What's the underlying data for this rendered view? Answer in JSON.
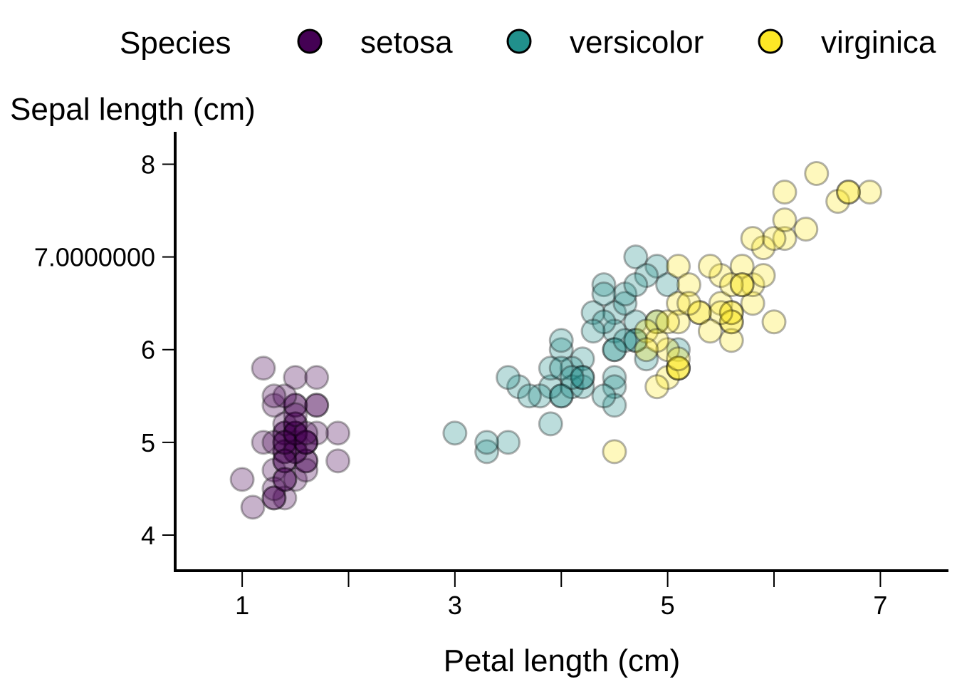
{
  "chart_data": {
    "type": "scatter",
    "xlabel": "Petal length (cm)",
    "ylabel": "Sepal length (cm)",
    "xlim": [
      0.37,
      7.64
    ],
    "ylim": [
      3.6,
      8.35
    ],
    "x_ticks": [
      {
        "value": 1,
        "label": "1"
      },
      {
        "value": 2,
        "label": ""
      },
      {
        "value": 3,
        "label": "3"
      },
      {
        "value": 4,
        "label": ""
      },
      {
        "value": 5,
        "label": "5"
      },
      {
        "value": 6,
        "label": ""
      },
      {
        "value": 7,
        "label": "7"
      }
    ],
    "y_ticks": [
      {
        "value": 4,
        "label": "4"
      },
      {
        "value": 5,
        "label": "5"
      },
      {
        "value": 6,
        "label": "6"
      },
      {
        "value": 7,
        "label": "7.0000000"
      },
      {
        "value": 8,
        "label": "8"
      }
    ],
    "grid": false,
    "legend": {
      "title": "Species",
      "position": "top",
      "entries": [
        "setosa",
        "versicolor",
        "virginica"
      ]
    },
    "series": [
      {
        "name": "setosa",
        "color": "#440154",
        "points": [
          [
            1.4,
            5.1
          ],
          [
            1.4,
            4.9
          ],
          [
            1.3,
            4.7
          ],
          [
            1.5,
            4.6
          ],
          [
            1.4,
            5.0
          ],
          [
            1.7,
            5.4
          ],
          [
            1.4,
            4.6
          ],
          [
            1.5,
            5.0
          ],
          [
            1.4,
            4.4
          ],
          [
            1.5,
            4.9
          ],
          [
            1.5,
            5.4
          ],
          [
            1.6,
            4.8
          ],
          [
            1.4,
            4.8
          ],
          [
            1.1,
            4.3
          ],
          [
            1.2,
            5.8
          ],
          [
            1.5,
            5.7
          ],
          [
            1.3,
            5.4
          ],
          [
            1.4,
            5.1
          ],
          [
            1.7,
            5.7
          ],
          [
            1.5,
            5.1
          ],
          [
            1.7,
            5.4
          ],
          [
            1.5,
            5.1
          ],
          [
            1.0,
            4.6
          ],
          [
            1.7,
            5.1
          ],
          [
            1.9,
            4.8
          ],
          [
            1.6,
            5.0
          ],
          [
            1.6,
            5.0
          ],
          [
            1.5,
            5.2
          ],
          [
            1.4,
            5.2
          ],
          [
            1.6,
            4.7
          ],
          [
            1.6,
            4.8
          ],
          [
            1.5,
            5.4
          ],
          [
            1.5,
            5.2
          ],
          [
            1.4,
            5.5
          ],
          [
            1.5,
            4.9
          ],
          [
            1.2,
            5.0
          ],
          [
            1.3,
            5.5
          ],
          [
            1.4,
            4.9
          ],
          [
            1.3,
            4.4
          ],
          [
            1.5,
            5.1
          ],
          [
            1.3,
            5.0
          ],
          [
            1.3,
            4.5
          ],
          [
            1.3,
            4.4
          ],
          [
            1.6,
            5.0
          ],
          [
            1.9,
            5.1
          ],
          [
            1.4,
            4.8
          ],
          [
            1.6,
            5.1
          ],
          [
            1.4,
            4.6
          ],
          [
            1.5,
            5.3
          ],
          [
            1.4,
            5.0
          ]
        ]
      },
      {
        "name": "versicolor",
        "color": "#21908C",
        "points": [
          [
            4.7,
            7.0
          ],
          [
            4.5,
            6.4
          ],
          [
            4.9,
            6.9
          ],
          [
            4.0,
            5.5
          ],
          [
            4.6,
            6.5
          ],
          [
            4.5,
            5.7
          ],
          [
            4.7,
            6.3
          ],
          [
            3.3,
            4.9
          ],
          [
            4.6,
            6.6
          ],
          [
            3.9,
            5.2
          ],
          [
            3.5,
            5.0
          ],
          [
            4.2,
            5.9
          ],
          [
            4.0,
            6.0
          ],
          [
            4.7,
            6.1
          ],
          [
            3.6,
            5.6
          ],
          [
            4.4,
            6.7
          ],
          [
            4.5,
            5.6
          ],
          [
            4.1,
            5.8
          ],
          [
            4.5,
            6.2
          ],
          [
            3.9,
            5.6
          ],
          [
            4.8,
            5.9
          ],
          [
            4.0,
            6.1
          ],
          [
            4.9,
            6.3
          ],
          [
            4.7,
            6.1
          ],
          [
            4.3,
            6.4
          ],
          [
            4.4,
            6.6
          ],
          [
            4.8,
            6.8
          ],
          [
            5.0,
            6.7
          ],
          [
            4.5,
            6.0
          ],
          [
            3.5,
            5.7
          ],
          [
            3.8,
            5.5
          ],
          [
            3.7,
            5.5
          ],
          [
            3.9,
            5.8
          ],
          [
            5.1,
            6.0
          ],
          [
            4.5,
            5.4
          ],
          [
            4.5,
            6.0
          ],
          [
            4.7,
            6.7
          ],
          [
            4.4,
            6.3
          ],
          [
            4.1,
            5.6
          ],
          [
            4.0,
            5.5
          ],
          [
            4.4,
            5.5
          ],
          [
            4.6,
            6.1
          ],
          [
            4.0,
            5.8
          ],
          [
            3.3,
            5.0
          ],
          [
            4.2,
            5.6
          ],
          [
            4.2,
            5.7
          ],
          [
            4.2,
            5.7
          ],
          [
            4.3,
            6.2
          ],
          [
            3.0,
            5.1
          ],
          [
            4.1,
            5.7
          ]
        ]
      },
      {
        "name": "virginica",
        "color": "#FDE725",
        "points": [
          [
            6.0,
            6.3
          ],
          [
            5.1,
            5.8
          ],
          [
            5.9,
            7.1
          ],
          [
            5.6,
            6.3
          ],
          [
            5.8,
            6.5
          ],
          [
            6.6,
            7.6
          ],
          [
            4.5,
            4.9
          ],
          [
            6.3,
            7.3
          ],
          [
            5.8,
            6.7
          ],
          [
            6.1,
            7.2
          ],
          [
            5.1,
            6.5
          ],
          [
            5.3,
            6.4
          ],
          [
            5.5,
            6.8
          ],
          [
            5.0,
            5.7
          ],
          [
            5.1,
            5.8
          ],
          [
            5.3,
            6.4
          ],
          [
            5.5,
            6.5
          ],
          [
            6.7,
            7.7
          ],
          [
            6.9,
            7.7
          ],
          [
            5.0,
            6.0
          ],
          [
            5.7,
            6.9
          ],
          [
            4.9,
            5.6
          ],
          [
            6.7,
            7.7
          ],
          [
            4.9,
            6.3
          ],
          [
            5.7,
            6.7
          ],
          [
            6.0,
            7.2
          ],
          [
            4.8,
            6.2
          ],
          [
            4.9,
            6.1
          ],
          [
            5.6,
            6.4
          ],
          [
            5.8,
            7.2
          ],
          [
            6.1,
            7.4
          ],
          [
            6.4,
            7.9
          ],
          [
            5.6,
            6.4
          ],
          [
            5.1,
            6.3
          ],
          [
            5.6,
            6.1
          ],
          [
            6.1,
            7.7
          ],
          [
            5.6,
            6.3
          ],
          [
            5.5,
            6.4
          ],
          [
            4.8,
            6.0
          ],
          [
            5.4,
            6.9
          ],
          [
            5.6,
            6.7
          ],
          [
            5.1,
            6.9
          ],
          [
            5.1,
            5.8
          ],
          [
            5.9,
            6.8
          ],
          [
            5.7,
            6.7
          ],
          [
            5.2,
            6.7
          ],
          [
            5.0,
            6.3
          ],
          [
            5.2,
            6.5
          ],
          [
            5.4,
            6.2
          ],
          [
            5.1,
            5.9
          ]
        ]
      }
    ]
  }
}
